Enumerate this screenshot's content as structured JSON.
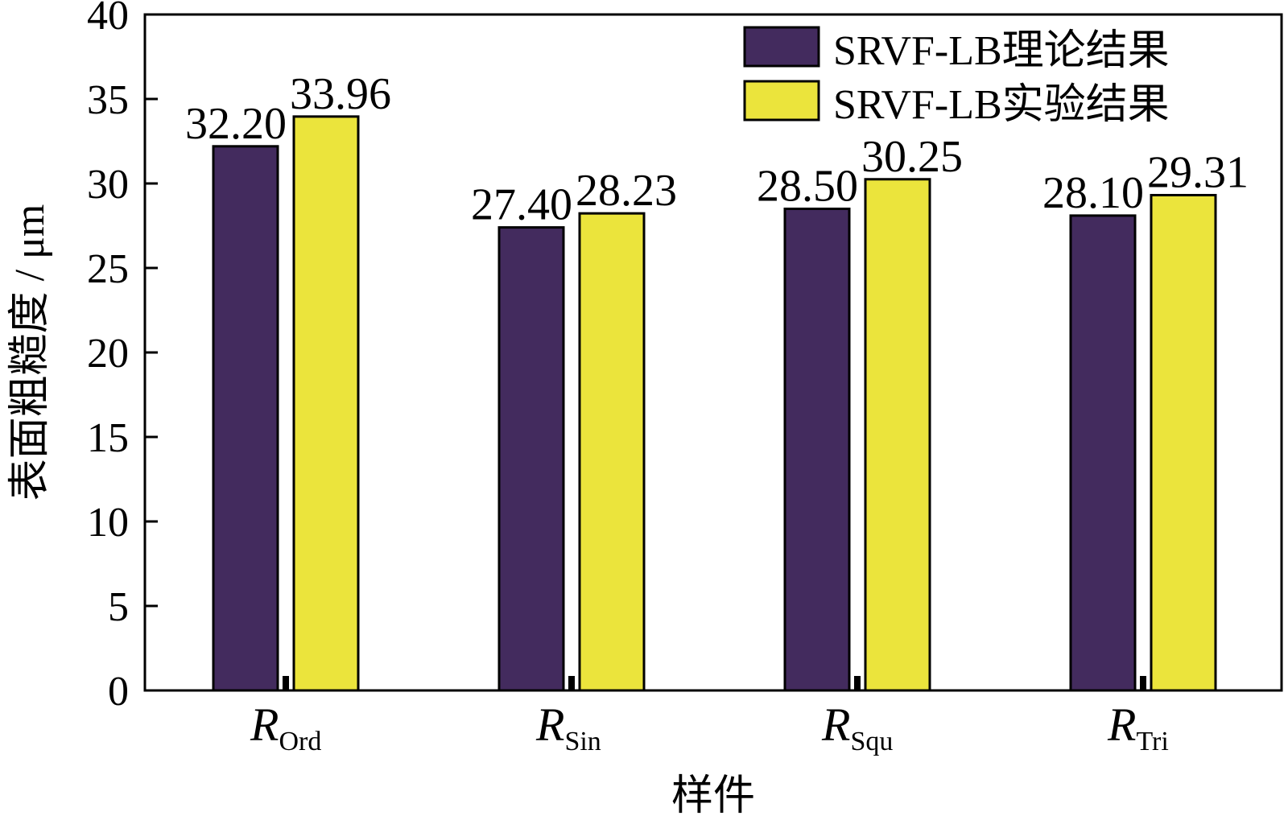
{
  "chart_data": {
    "type": "bar",
    "title": "",
    "xlabel": "样件",
    "ylabel": "表面粗糙度 / μm",
    "categories": [
      {
        "main": "R",
        "sub": "Ord"
      },
      {
        "main": "R",
        "sub": "Sin"
      },
      {
        "main": "R",
        "sub": "Squ"
      },
      {
        "main": "R",
        "sub": "Tri"
      }
    ],
    "series": [
      {
        "name": "SRVF-LB理论结果",
        "color": "#432b5e",
        "values": [
          32.2,
          27.4,
          28.5,
          28.1
        ],
        "labels": [
          "32.20",
          "27.40",
          "28.50",
          "28.10"
        ]
      },
      {
        "name": "SRVF-LB实验结果",
        "color": "#ebe43c",
        "values": [
          33.96,
          28.23,
          30.25,
          29.31
        ],
        "labels": [
          "33.96",
          "28.23",
          "30.25",
          "29.31"
        ]
      }
    ],
    "ylim": [
      0,
      40
    ],
    "yticks": [
      "0",
      "5",
      "10",
      "15",
      "20",
      "25",
      "30",
      "35",
      "40"
    ],
    "grid": false,
    "legend": "top-right"
  }
}
